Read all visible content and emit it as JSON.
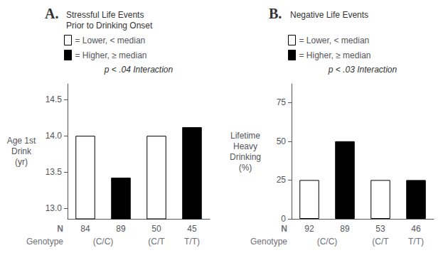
{
  "chart_data": [
    {
      "type": "bar",
      "title": "A.",
      "subtitle": "Stressful Life Events\nPrior to Drinking Onset",
      "ylabel": "Age 1st\nDrink\n(yr)",
      "xlabel": "N",
      "categories": [
        "84",
        "89",
        "50",
        "45"
      ],
      "series": [
        {
          "name": "= Lower, < median",
          "color": "white",
          "values": [
            14.0,
            null,
            14.0,
            null
          ]
        },
        {
          "name": "= Higher, ≥ median",
          "color": "black",
          "values": [
            null,
            13.42,
            null,
            14.12
          ]
        }
      ],
      "group_label": "Genotype",
      "groups": [
        {
          "label": "(C/C)",
          "size": 2
        },
        {
          "label": "(C/T",
          "size": 1
        },
        {
          "label": "T/T)",
          "size": 1
        }
      ],
      "annotation": "p < .04 Interaction",
      "ylim": [
        12.85,
        14.72
      ],
      "yticks": [
        {
          "value": 13.0,
          "label": "13.0"
        },
        13.5,
        {
          "value": 14.0,
          "label": "14.0"
        },
        14.5
      ],
      "grid": false,
      "legend": "top"
    },
    {
      "type": "bar",
      "title": "B.",
      "subtitle": "Negative Life Events",
      "ylabel": "Lifetime\nHeavy\nDrinking\n(%)",
      "xlabel": "N",
      "categories": [
        "92",
        "89",
        "53",
        "46"
      ],
      "series": [
        {
          "name": "= Lower, < median",
          "color": "white",
          "values": [
            25,
            null,
            25,
            null
          ]
        },
        {
          "name": "= Higher, ≥ median",
          "color": "black",
          "values": [
            null,
            50,
            null,
            25
          ]
        }
      ],
      "group_label": "Genotype",
      "groups": [
        {
          "label": "(C/C)",
          "size": 2
        },
        {
          "label": "(C/T",
          "size": 1
        },
        {
          "label": "T/T)",
          "size": 1
        }
      ],
      "annotation": "p < .03 Interaction",
      "ylim": [
        0,
        87
      ],
      "yticks": [
        0,
        25,
        50,
        75
      ],
      "grid": false,
      "legend": "top"
    }
  ]
}
